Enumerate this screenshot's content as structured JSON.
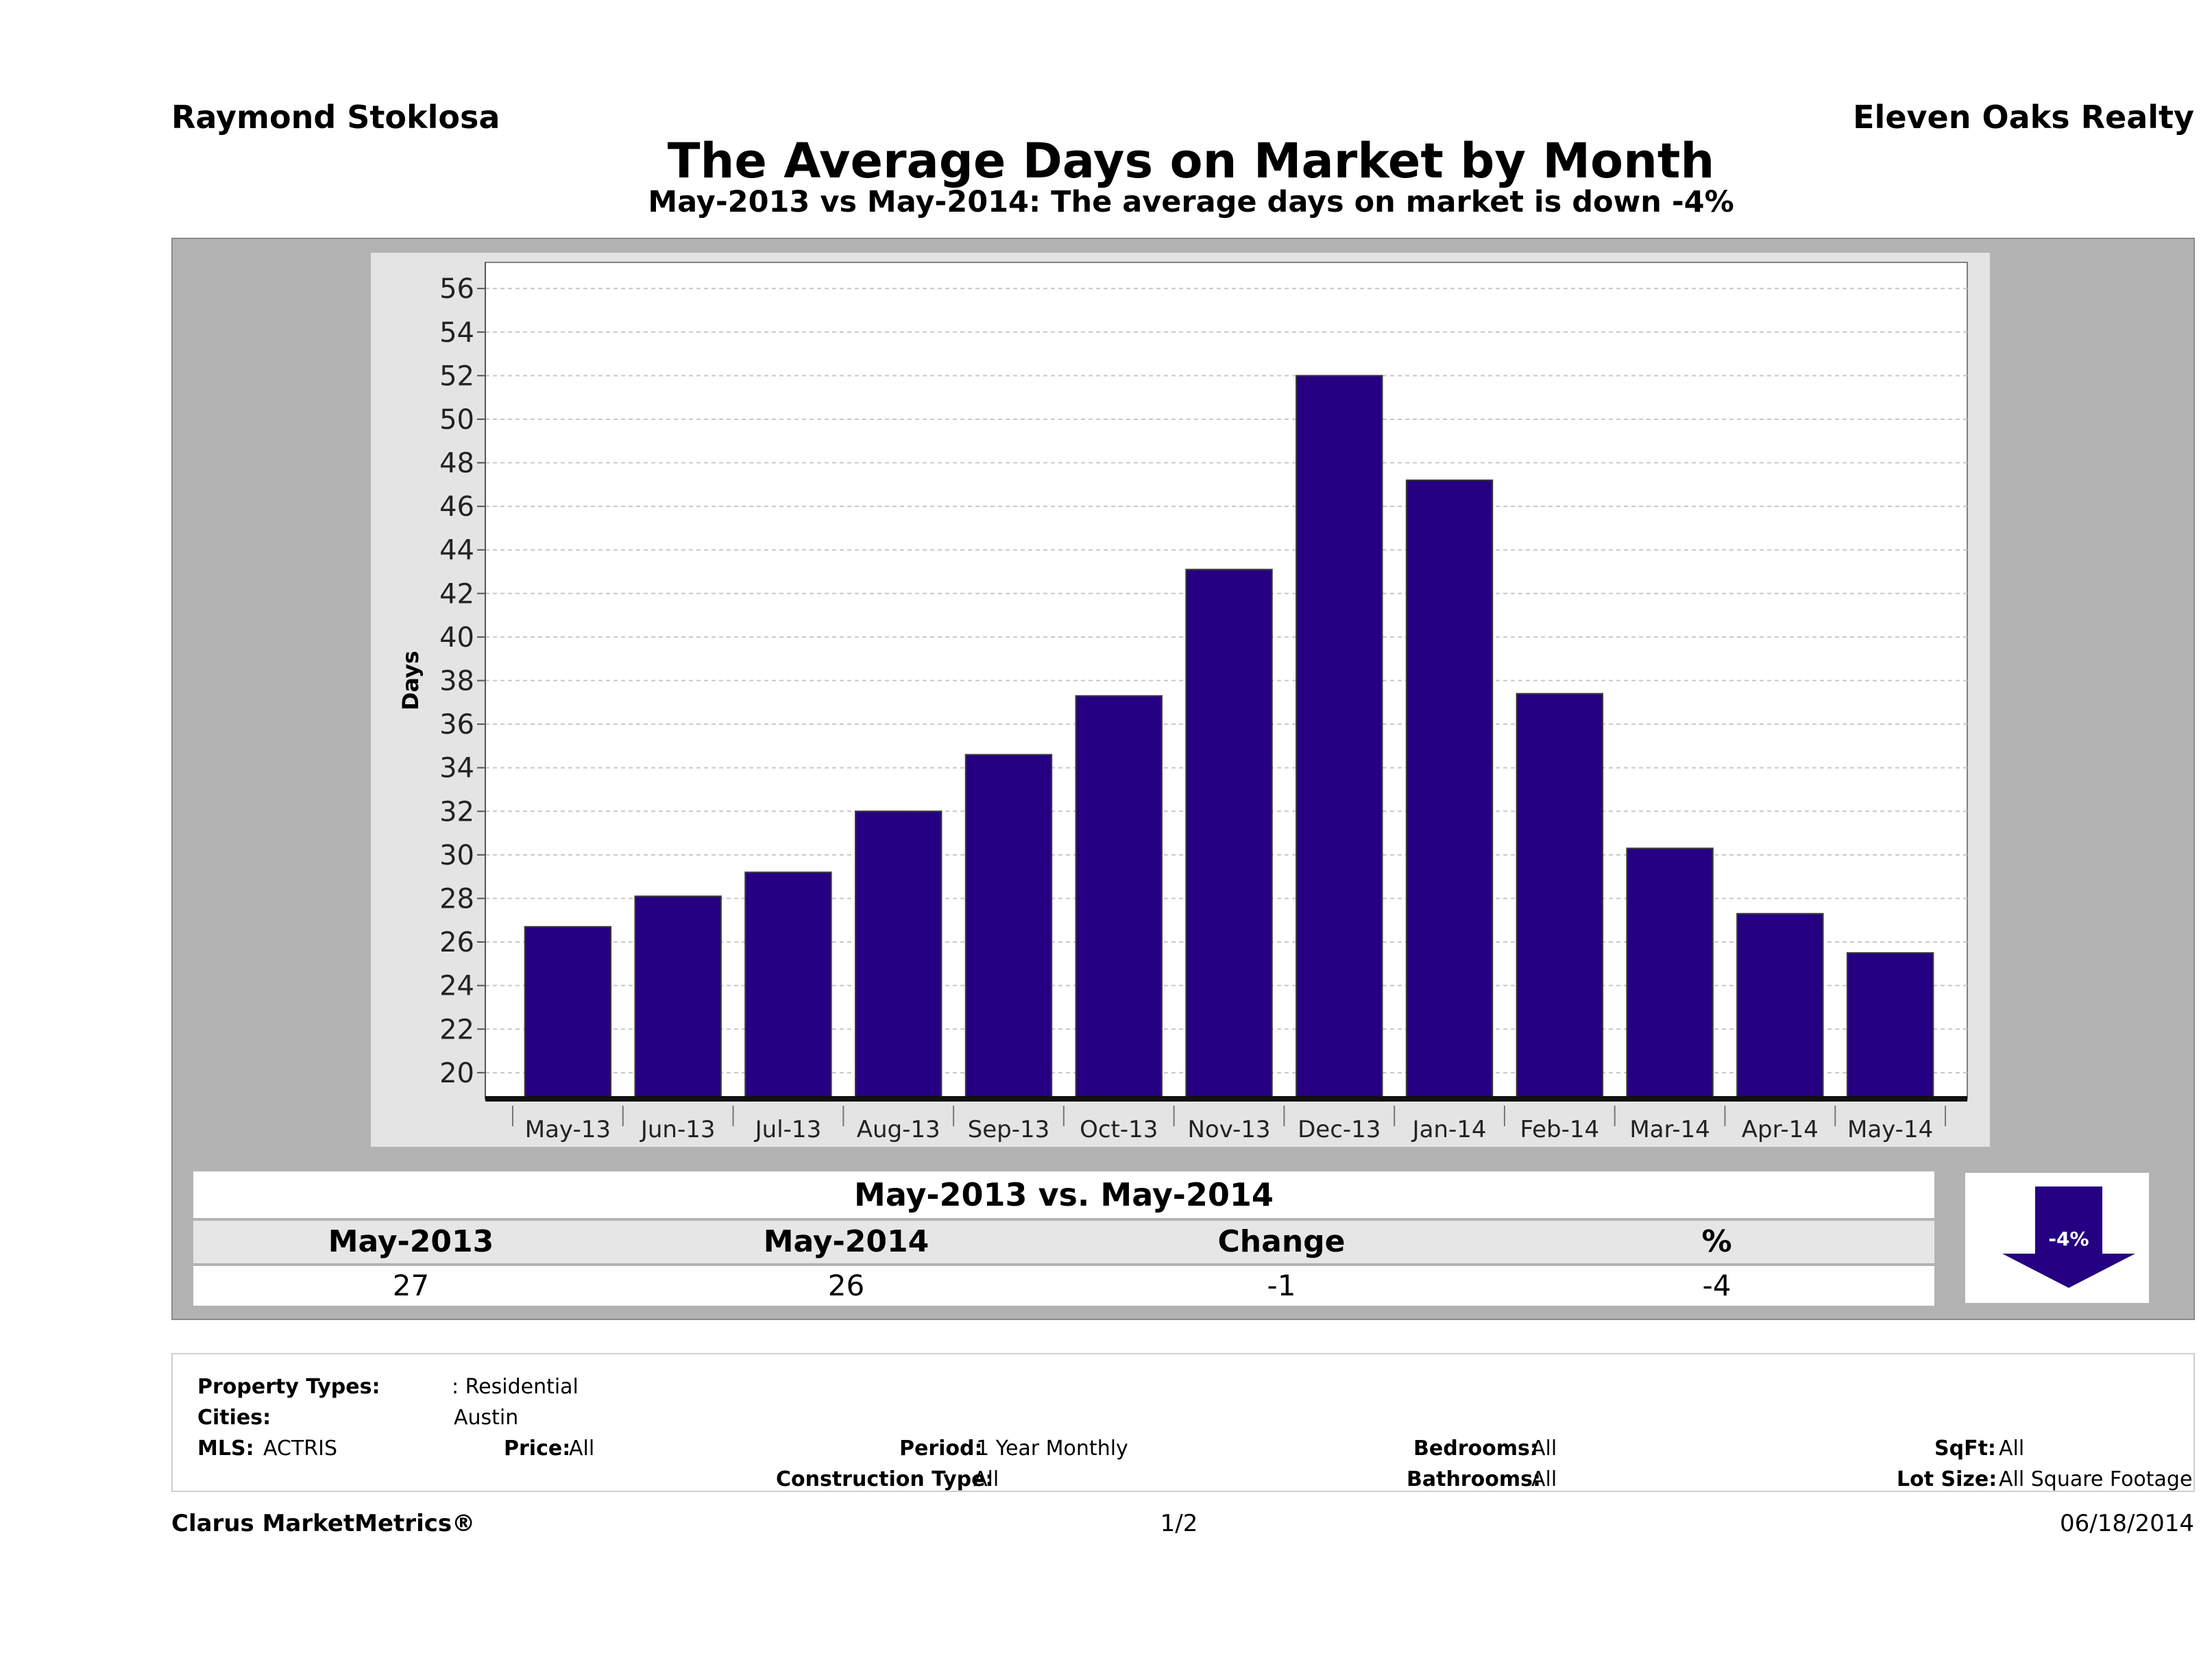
{
  "header": {
    "agent": "Raymond Stoklosa",
    "company": "Eleven Oaks Realty",
    "title": "The Average Days on Market by Month",
    "subtitle": "May-2013 vs May-2014: The average days on market is down -4%"
  },
  "chart_data": {
    "type": "bar",
    "title": "The Average Days on Market by Month",
    "subtitle": "May-2013 vs May-2014: The average days on market is down -4%",
    "xlabel": "",
    "ylabel": "Days",
    "categories": [
      "May-13",
      "Jun-13",
      "Jul-13",
      "Aug-13",
      "Sep-13",
      "Oct-13",
      "Nov-13",
      "Dec-13",
      "Jan-14",
      "Feb-14",
      "Mar-14",
      "Apr-14",
      "May-14"
    ],
    "values": [
      26.7,
      28.1,
      29.2,
      32.0,
      34.6,
      37.3,
      43.1,
      52.0,
      47.2,
      37.4,
      30.3,
      27.3,
      25.5
    ],
    "ylim": [
      18.8,
      57.2
    ],
    "yticks": [
      20,
      22,
      24,
      26,
      28,
      30,
      32,
      34,
      36,
      38,
      40,
      42,
      44,
      46,
      48,
      50,
      52,
      54,
      56
    ],
    "grid": true,
    "bar_color": "#250082"
  },
  "summary": {
    "title": "May-2013 vs. May-2014",
    "headers": [
      "May-2013",
      "May-2014",
      "Change",
      "%"
    ],
    "values": [
      "27",
      "26",
      "-1",
      "-4"
    ],
    "badge": "-4%",
    "badge_color": "#250082"
  },
  "filters": {
    "property_types_label": "Property Types:",
    "property_types_value": ": Residential",
    "cities_label": "Cities:",
    "cities_value": "Austin",
    "mls_label": "MLS:",
    "mls_value": "ACTRIS",
    "price_label": "Price:",
    "price_value": "All",
    "period_label": "Period:",
    "period_value": "1 Year Monthly",
    "construction_label": "Construction Type:",
    "construction_value": "All",
    "bedrooms_label": "Bedrooms:",
    "bedrooms_value": "All",
    "bathrooms_label": "Bathrooms:",
    "bathrooms_value": "All",
    "sqft_label": "SqFt:",
    "sqft_value": "All",
    "lot_size_label": "Lot Size:",
    "lot_size_value": "All Square Footage"
  },
  "footer": {
    "brand": "Clarus MarketMetrics®",
    "page": "1/2",
    "date": "06/18/2014"
  }
}
